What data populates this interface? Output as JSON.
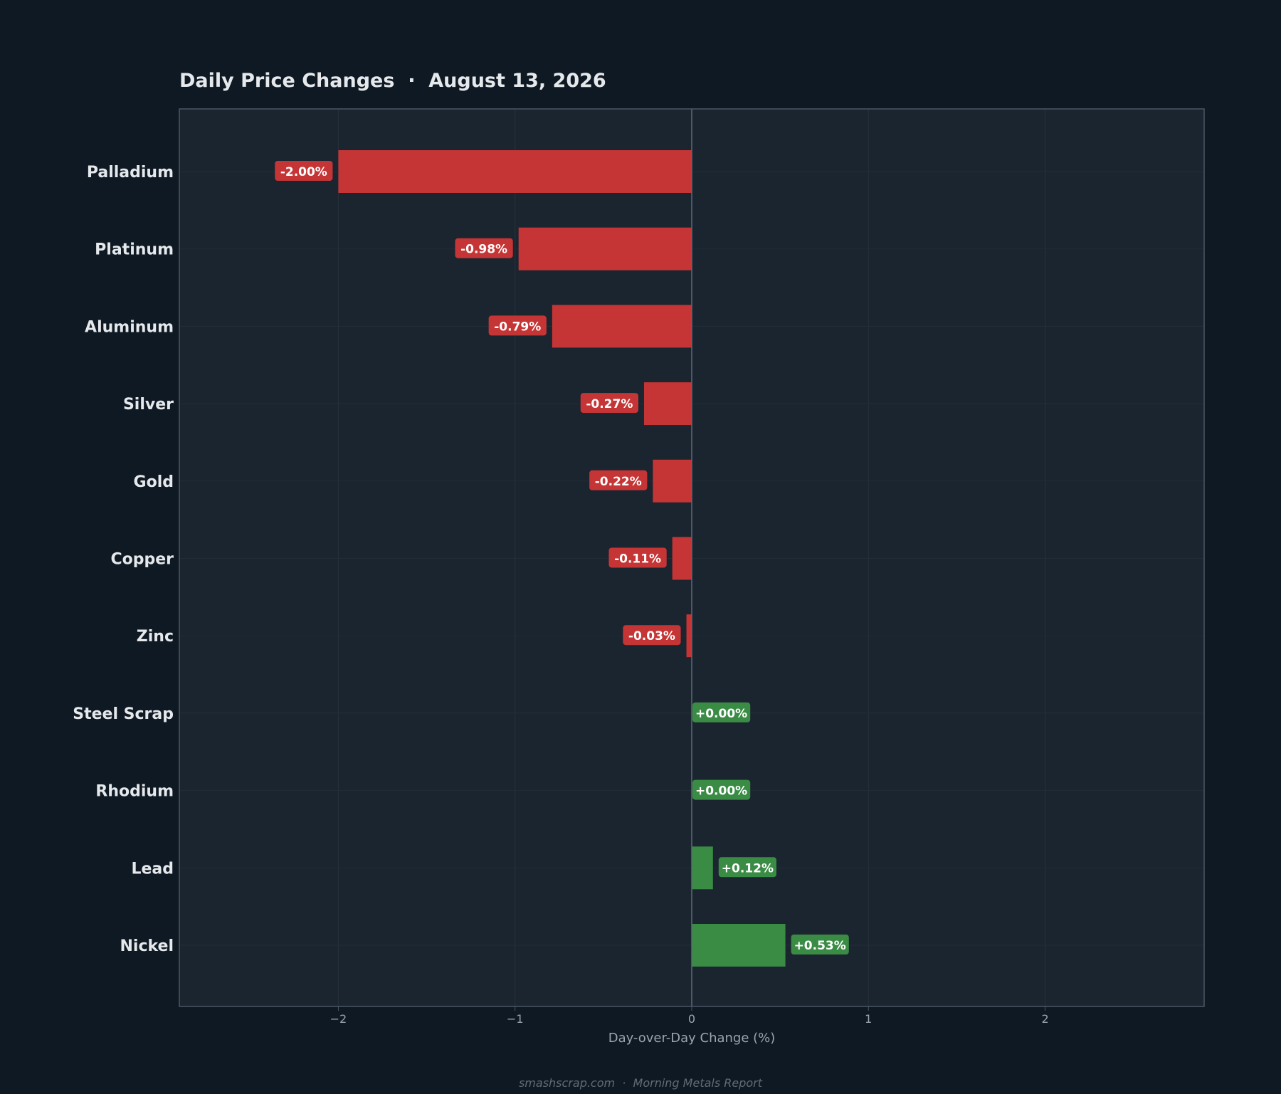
{
  "title": "Daily Price Changes  ·  August 13, 2026",
  "footer": "smashscrap.com  ·  Morning Metals Report",
  "colors": {
    "background": "#0f1923",
    "plot_background": "#1b2530",
    "negative": "#c63535",
    "positive": "#3a8c45",
    "text": "#e6e9ec",
    "axis_text": "#9aa4ad",
    "frame": "#4a5764",
    "zero_line": "#5c6a77"
  },
  "chart_data": {
    "type": "bar",
    "orientation": "horizontal",
    "categories": [
      "Palladium",
      "Platinum",
      "Aluminum",
      "Silver",
      "Gold",
      "Copper",
      "Zinc",
      "Steel Scrap",
      "Rhodium",
      "Lead",
      "Nickel"
    ],
    "values": [
      -2.0,
      -0.98,
      -0.79,
      -0.27,
      -0.22,
      -0.11,
      -0.03,
      0.0,
      0.0,
      0.12,
      0.53
    ],
    "data_labels": [
      "-2.00%",
      "-0.98%",
      "-0.79%",
      "-0.27%",
      "-0.22%",
      "-0.11%",
      "-0.03%",
      "+0.00%",
      "+0.00%",
      "+0.12%",
      "+0.53%"
    ],
    "xlabel": "Day-over-Day Change (%)",
    "ylabel": "",
    "xlim": [
      -2.9,
      2.9
    ],
    "xticks": [
      -2,
      -1,
      0,
      1,
      2
    ],
    "xtick_labels": [
      "−2",
      "−1",
      "0",
      "1",
      "2"
    ],
    "grid": true,
    "legend": "none"
  }
}
